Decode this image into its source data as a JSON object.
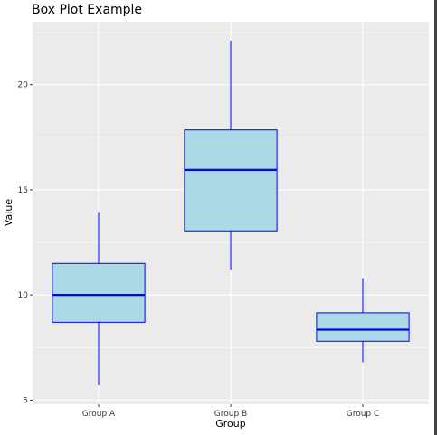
{
  "chart_data": {
    "type": "box",
    "title": "Box Plot Example",
    "xlabel": "Group",
    "ylabel": "Value",
    "ylim": [
      4.8,
      23.0
    ],
    "yticks": [
      5,
      10,
      15,
      20
    ],
    "y_minor_ticks": [
      7.5,
      12.5,
      17.5,
      22.5
    ],
    "categories": [
      "Group A",
      "Group B",
      "Group C"
    ],
    "boxes": [
      {
        "category": "Group A",
        "whisker_low": 5.7,
        "q1": 8.7,
        "median": 10.0,
        "q3": 11.5,
        "whisker_high": 13.95
      },
      {
        "category": "Group B",
        "whisker_low": 11.2,
        "q1": 13.05,
        "median": 15.95,
        "q3": 17.85,
        "whisker_high": 22.1
      },
      {
        "category": "Group C",
        "whisker_low": 6.8,
        "q1": 7.8,
        "median": 8.35,
        "q3": 9.15,
        "whisker_high": 10.8
      }
    ],
    "grid": true,
    "legend": "none",
    "colors": {
      "panel_background": "#ebebeb",
      "grid": "#ffffff",
      "box_fill": "#add8e6",
      "box_outline": "#0000ff",
      "median_line": "#0000ff"
    }
  }
}
